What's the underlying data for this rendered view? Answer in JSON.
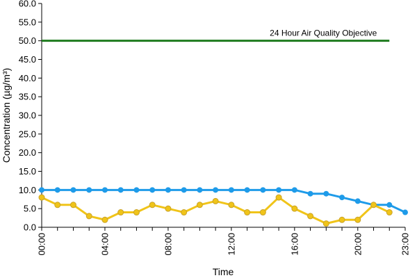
{
  "chart_data": {
    "type": "line",
    "xlabel": "Time",
    "ylabel": "Concentration (µg/m³)",
    "x_ticks": [
      "00:00",
      "04:00",
      "08:00",
      "12:00",
      "16:00",
      "20:00",
      "23:00"
    ],
    "y_ticks": [
      "0.0",
      "5.0",
      "10.0",
      "15.0",
      "20.0",
      "25.0",
      "30.0",
      "35.0",
      "40.0",
      "45.0",
      "50.0",
      "55.0",
      "60.0"
    ],
    "xlim": [
      0,
      23
    ],
    "ylim": [
      0,
      60
    ],
    "grid": false,
    "objective": {
      "label": "24 Hour Air Quality Objective",
      "value": 50,
      "x_range": [
        0,
        22
      ],
      "color": "#1e7b1e"
    },
    "series": [
      {
        "color": "#1e9be9",
        "x": [
          0,
          1,
          2,
          3,
          4,
          5,
          6,
          7,
          8,
          9,
          10,
          11,
          12,
          13,
          14,
          15,
          16,
          17,
          18,
          19,
          20,
          21,
          22,
          23
        ],
        "values": [
          10,
          10,
          10,
          10,
          10,
          10,
          10,
          10,
          10,
          10,
          10,
          10,
          10,
          10,
          10,
          10,
          10,
          9,
          9,
          8,
          7,
          6,
          6,
          4
        ]
      },
      {
        "color": "#f0c419",
        "x": [
          0,
          1,
          2,
          3,
          4,
          5,
          6,
          7,
          8,
          9,
          10,
          11,
          12,
          13,
          14,
          15,
          16,
          17,
          18,
          19,
          20,
          21,
          22
        ],
        "values": [
          8,
          6,
          6,
          3,
          2,
          4,
          4,
          6,
          5,
          4,
          6,
          7,
          6,
          4,
          4,
          8,
          5,
          3,
          1,
          2,
          2,
          6,
          4
        ]
      }
    ]
  }
}
